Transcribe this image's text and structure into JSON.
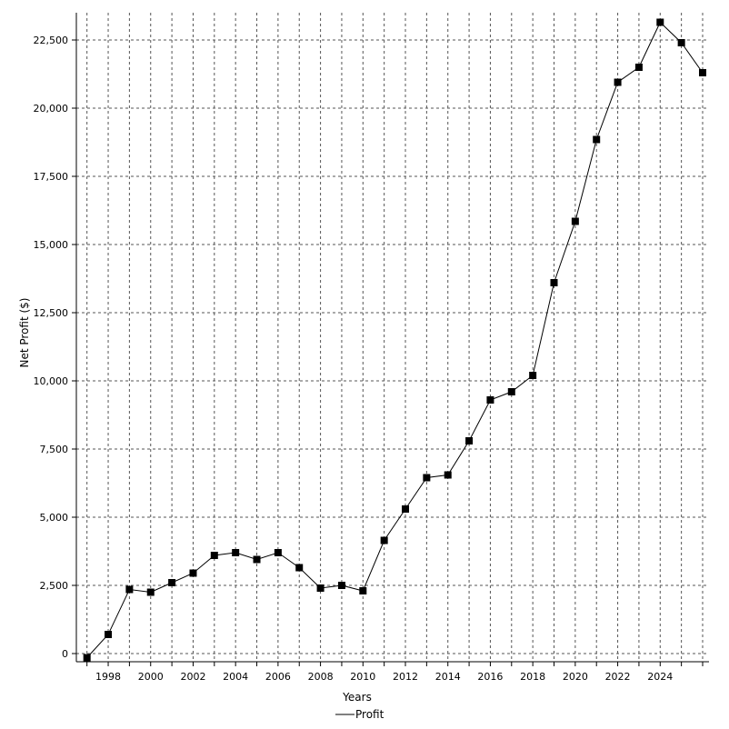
{
  "chart_data": {
    "type": "line",
    "title": "",
    "xlabel": "Years",
    "ylabel": "Net Profit ($)",
    "grid": true,
    "legend_position": "bottom-center",
    "ylim": [
      -300,
      23500
    ],
    "xlim": [
      1996.5,
      2026.3
    ],
    "x_ticks": [
      1998,
      2000,
      2002,
      2004,
      2006,
      2008,
      2010,
      2012,
      2014,
      2016,
      2018,
      2020,
      2022,
      2024
    ],
    "y_ticks": [
      0,
      2500,
      5000,
      7500,
      10000,
      12500,
      15000,
      17500,
      20000,
      22500
    ],
    "y_tick_labels": [
      "0",
      "2,500",
      "5,000",
      "7,500",
      "10,000",
      "12,500",
      "15,000",
      "17,500",
      "20,000",
      "22,500"
    ],
    "series": [
      {
        "name": "Profit",
        "color": "#000000",
        "x": [
          1997,
          1998,
          1999,
          2000,
          2001,
          2002,
          2003,
          2004,
          2005,
          2006,
          2007,
          2008,
          2009,
          2010,
          2011,
          2012,
          2013,
          2014,
          2015,
          2016,
          2017,
          2018,
          2019,
          2020,
          2021,
          2022,
          2023,
          2024,
          2025,
          2026
        ],
        "values": [
          -150,
          700,
          2350,
          2250,
          2600,
          2950,
          3600,
          3700,
          3450,
          3700,
          3150,
          2400,
          2500,
          2300,
          4150,
          5300,
          6450,
          6550,
          7800,
          9300,
          9600,
          10200,
          13600,
          15850,
          18850,
          20950,
          21500,
          23150,
          22400,
          21300
        ]
      }
    ]
  }
}
